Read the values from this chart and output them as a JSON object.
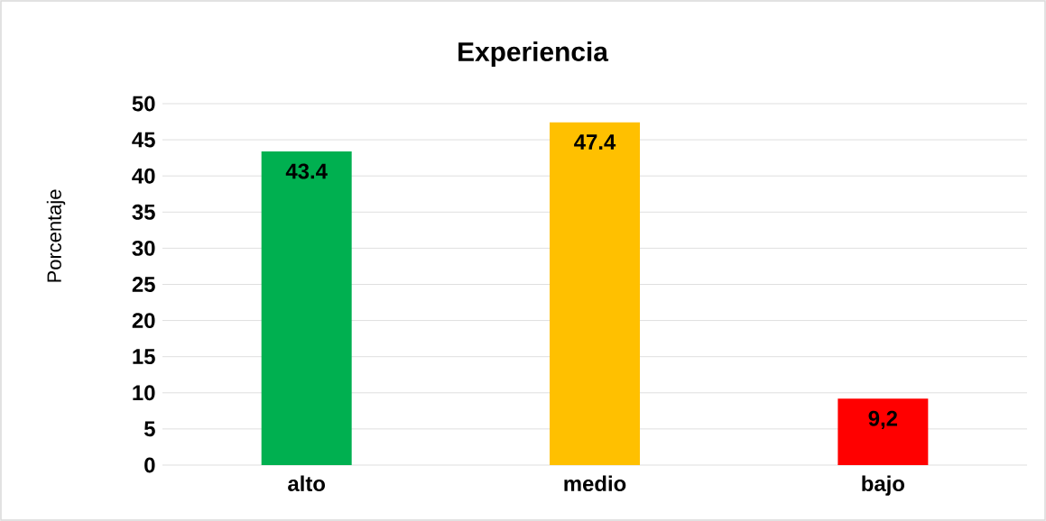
{
  "chart_data": {
    "type": "bar",
    "title": "Experiencia",
    "ylabel": "Porcentaje",
    "categories": [
      "alto",
      "medio",
      "bajo"
    ],
    "values": [
      43.4,
      47.4,
      9.2
    ],
    "colors": [
      "#00b050",
      "#ffc000",
      "#ff0000"
    ],
    "value_labels": [
      "43.4",
      "47.4",
      "9,2"
    ],
    "ylim": [
      0,
      50
    ],
    "yticks": [
      0,
      5,
      10,
      15,
      20,
      25,
      30,
      35,
      40,
      45,
      50
    ],
    "grid": "y"
  }
}
